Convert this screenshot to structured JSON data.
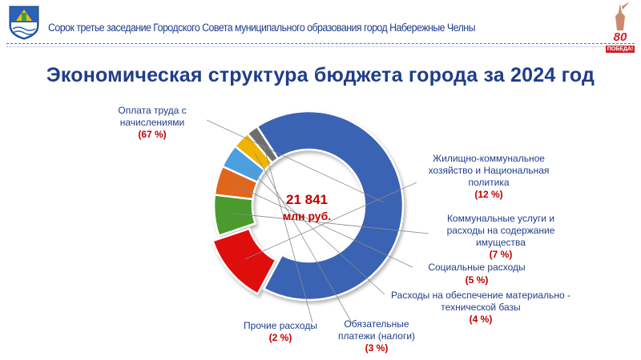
{
  "header": {
    "title": "Сорок третье заседание Городского Совета муниципального образования город Набережные Челны",
    "badge_number": "80",
    "badge_text": "ПОБЕДА!"
  },
  "slide_title": "Экономическая структура бюджета города за 2024 год",
  "colors": {
    "title_blue": "#1f3d8a",
    "accent_red": "#c00000"
  },
  "chart_data": {
    "type": "pie",
    "donut": true,
    "title": "Экономическая структура бюджета города за 2024 год",
    "center_value": "21 841",
    "center_unit": "млн руб.",
    "categories": [
      "Оплата труда с начислениями",
      "Жилищно-коммунальное хозяйство и Национальная политика",
      "Коммунальные услуги и расходы на содержание имущества",
      "Социальные расходы",
      "Расходы на обеспечение материально - технической базы",
      "Обязательные платежи (налоги)",
      "Прочие расходы"
    ],
    "values": [
      67,
      12,
      7,
      5,
      4,
      3,
      2
    ],
    "percent_labels": [
      "(67 %)",
      "(12 %)",
      "(7 %)",
      "(5 %)",
      "(4 %)",
      "(3 %)",
      "(2 %)"
    ],
    "series_colors": [
      "#3a63b4",
      "#e01010",
      "#4c9a2f",
      "#e0661c",
      "#4a9fe0",
      "#f0b400",
      "#6e6e6e"
    ]
  },
  "labels": {
    "l0_lines": [
      "Оплата труда с",
      "начислениями"
    ],
    "l1_lines": [
      "Жилищно-коммунальное",
      "хозяйство и Национальная",
      "политика"
    ],
    "l2_lines": [
      "Коммунальные услуги и",
      "расходы на содержание",
      "имущества"
    ],
    "l3_lines": [
      "Социальные расходы"
    ],
    "l4_lines": [
      "Расходы на обеспечение материально -",
      "технической базы"
    ],
    "l5_lines": [
      "Обязательные",
      "платежи (налоги)"
    ],
    "l6_lines": [
      "Прочие расходы"
    ]
  }
}
